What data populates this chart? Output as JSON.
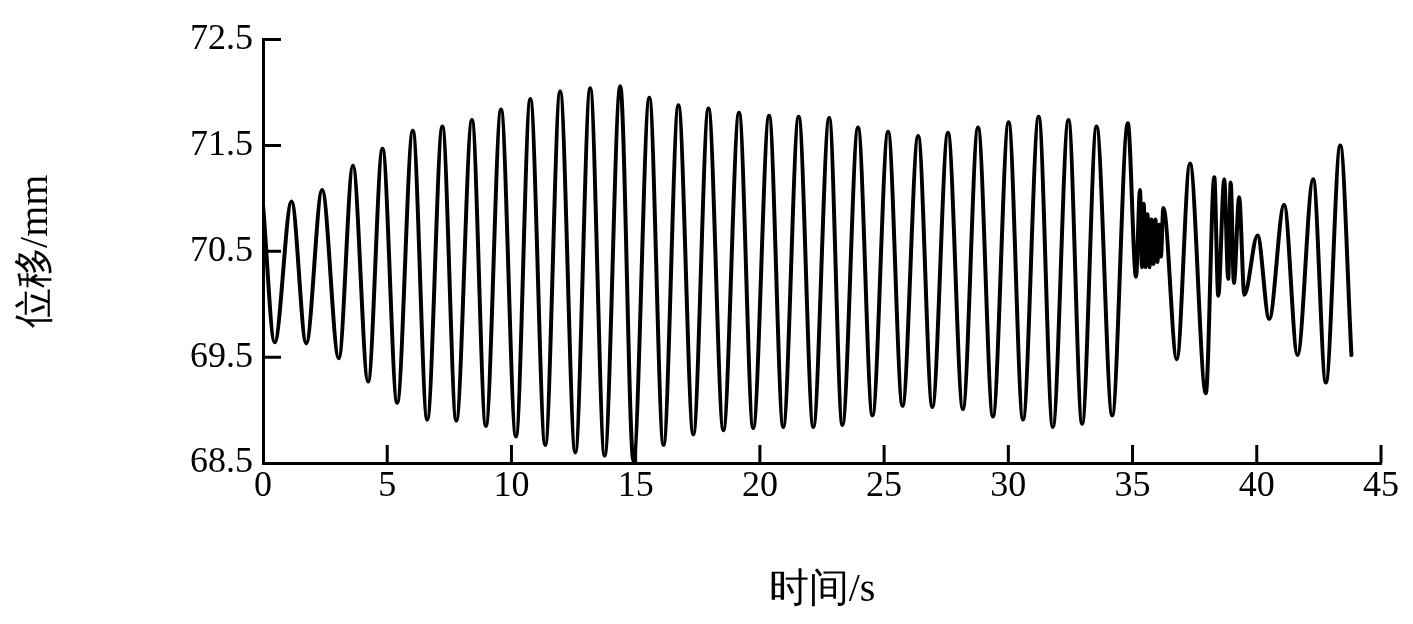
{
  "chart_data": {
    "type": "line",
    "xlabel": "时间/s",
    "ylabel": "位移/mm",
    "xlim": [
      0,
      45
    ],
    "xticks": [
      0,
      5,
      10,
      15,
      20,
      25,
      30,
      35,
      40,
      45
    ],
    "ylim": [
      68.5,
      72.5
    ],
    "yticks": [
      68.5,
      69.5,
      70.5,
      71.5,
      72.5
    ],
    "grid": false,
    "legend": false,
    "marker": "none",
    "line_style": "solid",
    "series": [
      {
        "color": "#000000",
        "x": [
          0,
          0.47,
          1.15,
          1.74,
          2.38,
          3.05,
          3.62,
          4.23,
          4.81,
          5.4,
          6.03,
          6.61,
          7.22,
          7.78,
          8.41,
          8.97,
          9.58,
          10.18,
          10.76,
          11.36,
          11.96,
          12.57,
          13.17,
          13.75,
          14.38,
          14.91,
          15.55,
          16.12,
          16.72,
          17.32,
          17.93,
          18.53,
          19.16,
          19.73,
          20.37,
          20.94,
          21.56,
          22.15,
          22.79,
          23.32,
          23.95,
          24.53,
          25.16,
          25.74,
          26.37,
          26.94,
          27.57,
          28.17,
          28.78,
          29.38,
          30.01,
          30.59,
          31.22,
          31.79,
          32.42,
          32.97,
          33.55,
          34.18,
          34.81,
          35.14,
          35.3,
          35.38,
          35.45,
          35.52,
          35.6,
          35.68,
          35.76,
          35.84,
          35.92,
          36.0,
          36.08,
          36.14,
          36.24,
          36.78,
          37.31,
          37.95,
          38.29,
          38.45,
          38.69,
          38.85,
          38.95,
          39.08,
          39.29,
          39.5,
          40.03,
          40.5,
          41.1,
          41.64,
          42.27,
          42.78,
          43.36,
          43.81
        ],
        "values": [
          70.94,
          69.64,
          70.97,
          69.63,
          71.08,
          69.49,
          71.31,
          69.27,
          71.47,
          69.07,
          71.64,
          68.91,
          71.68,
          68.9,
          71.74,
          68.85,
          71.84,
          68.75,
          71.94,
          68.67,
          72.01,
          68.6,
          72.04,
          68.57,
          72.06,
          68.52,
          71.95,
          68.67,
          71.88,
          68.77,
          71.85,
          68.81,
          71.81,
          68.83,
          71.78,
          68.84,
          71.77,
          68.84,
          71.76,
          68.86,
          71.67,
          68.95,
          71.63,
          69.04,
          71.59,
          69.03,
          71.62,
          69.01,
          71.67,
          68.94,
          71.72,
          68.91,
          71.77,
          68.84,
          71.74,
          68.87,
          71.68,
          68.95,
          71.71,
          70.26,
          71.08,
          70.35,
          70.95,
          70.35,
          70.85,
          70.35,
          70.8,
          70.38,
          70.8,
          70.4,
          70.75,
          70.45,
          70.91,
          69.48,
          71.33,
          69.16,
          71.2,
          70.08,
          71.18,
          70.24,
          71.15,
          70.2,
          71.01,
          70.09,
          70.65,
          69.86,
          70.94,
          69.52,
          71.18,
          69.26,
          71.5,
          69.52
        ]
      }
    ]
  }
}
